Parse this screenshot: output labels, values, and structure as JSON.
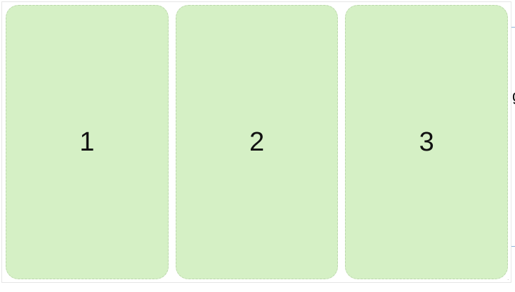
{
  "panels": [
    {
      "label": "1"
    },
    {
      "label": "2"
    },
    {
      "label": "3"
    }
  ],
  "background": {
    "edge_glyph": "g"
  },
  "colors": {
    "card_fill": "#d5f0c5",
    "card_border": "#bcd8ad",
    "container_border": "#e6e6e6"
  },
  "icons": {
    "resize": "resize-handle-icon"
  }
}
